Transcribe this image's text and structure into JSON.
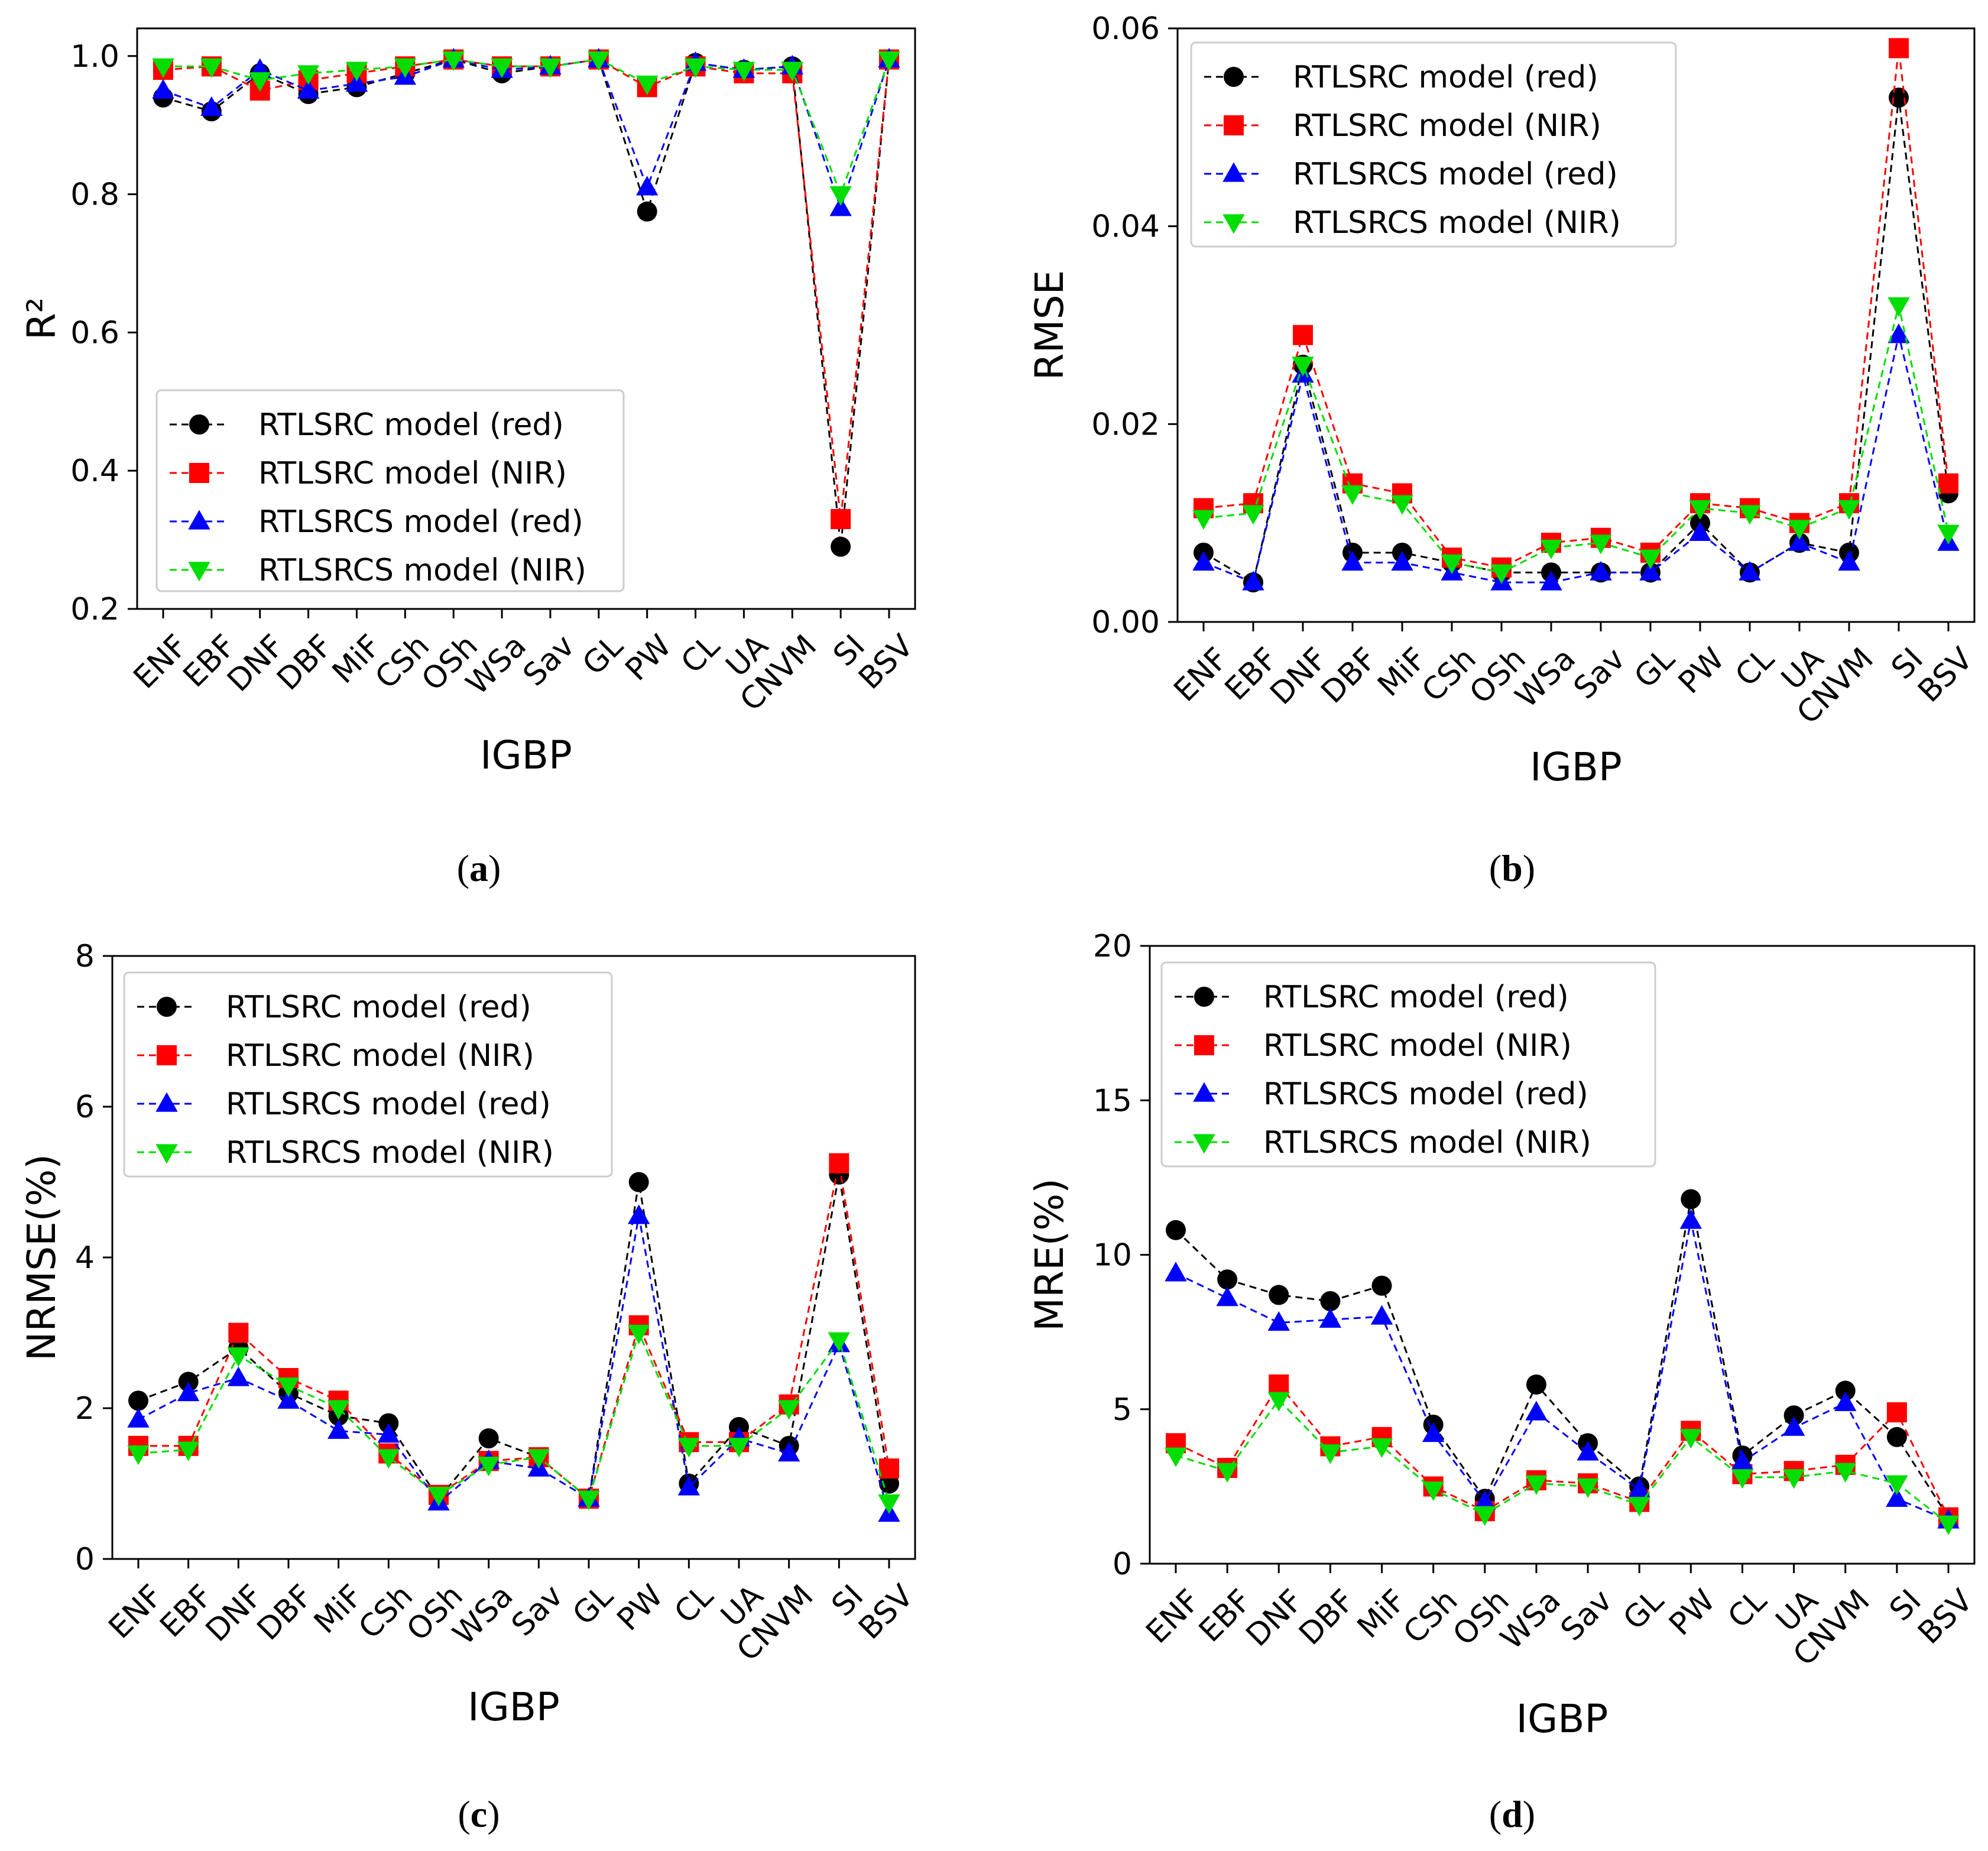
{
  "figure": {
    "panel_labels": [
      "a",
      "b",
      "c",
      "d"
    ]
  },
  "colors": {
    "red_series": "#000000",
    "nir_series": "#ff0000",
    "cs_red_series": "#0000ff",
    "cs_nir_series": "#00dd00"
  },
  "chart_data": [
    {
      "type": "line",
      "panel": "a",
      "xlabel": "IGBP",
      "ylabel": "R²",
      "ylim": [
        0.2,
        1.04
      ],
      "yticks": [
        0.2,
        0.4,
        0.6,
        0.8,
        1.0
      ],
      "ytick_labels": [
        "0.2",
        "0.4",
        "0.6",
        "0.8",
        "1.0"
      ],
      "legend_position": "lower-left",
      "categories": [
        "ENF",
        "EBF",
        "DNF",
        "DBF",
        "MiF",
        "CSh",
        "OSh",
        "WSa",
        "Sav",
        "GL",
        "PW",
        "CL",
        "UA",
        "CNVM",
        "SI",
        "BSV"
      ],
      "series": [
        {
          "name": "RTLSRC model (red)",
          "marker": "circle",
          "color": "#000000",
          "values": [
            0.94,
            0.92,
            0.975,
            0.945,
            0.955,
            0.975,
            0.995,
            0.975,
            0.985,
            0.995,
            0.775,
            0.99,
            0.98,
            0.985,
            0.29,
            0.995
          ]
        },
        {
          "name": "RTLSRC model (NIR)",
          "marker": "square",
          "color": "#ff0000",
          "values": [
            0.98,
            0.985,
            0.95,
            0.965,
            0.975,
            0.985,
            0.995,
            0.985,
            0.985,
            0.995,
            0.955,
            0.985,
            0.975,
            0.975,
            0.33,
            0.995
          ]
        },
        {
          "name": "RTLSRCS model (red)",
          "marker": "triangle-up",
          "color": "#0000ff",
          "values": [
            0.95,
            0.925,
            0.98,
            0.95,
            0.96,
            0.97,
            0.995,
            0.98,
            0.985,
            0.995,
            0.81,
            0.99,
            0.98,
            0.985,
            0.78,
            0.995
          ]
        },
        {
          "name": "RTLSRCS model (NIR)",
          "marker": "triangle-down",
          "color": "#00dd00",
          "values": [
            0.985,
            0.985,
            0.965,
            0.975,
            0.98,
            0.985,
            0.995,
            0.985,
            0.985,
            0.995,
            0.96,
            0.985,
            0.98,
            0.98,
            0.8,
            0.995
          ]
        }
      ]
    },
    {
      "type": "line",
      "panel": "b",
      "xlabel": "IGBP",
      "ylabel": "RMSE",
      "ylim": [
        0.0,
        0.06
      ],
      "yticks": [
        0.0,
        0.02,
        0.04,
        0.06
      ],
      "ytick_labels": [
        "0.00",
        "0.02",
        "0.04",
        "0.06"
      ],
      "legend_position": "top-left",
      "categories": [
        "ENF",
        "EBF",
        "DNF",
        "DBF",
        "MiF",
        "CSh",
        "OSh",
        "WSa",
        "Sav",
        "GL",
        "PW",
        "CL",
        "UA",
        "CNVM",
        "SI",
        "BSV"
      ],
      "series": [
        {
          "name": "RTLSRC model (red)",
          "marker": "circle",
          "color": "#000000",
          "values": [
            0.007,
            0.004,
            0.026,
            0.007,
            0.007,
            0.006,
            0.005,
            0.005,
            0.005,
            0.005,
            0.01,
            0.005,
            0.008,
            0.007,
            0.053,
            0.013
          ]
        },
        {
          "name": "RTLSRC model (NIR)",
          "marker": "square",
          "color": "#ff0000",
          "values": [
            0.0115,
            0.012,
            0.029,
            0.014,
            0.013,
            0.0065,
            0.0055,
            0.008,
            0.0085,
            0.007,
            0.012,
            0.0115,
            0.01,
            0.012,
            0.058,
            0.014
          ]
        },
        {
          "name": "RTLSRCS model (red)",
          "marker": "triangle-up",
          "color": "#0000ff",
          "values": [
            0.006,
            0.004,
            0.025,
            0.006,
            0.006,
            0.005,
            0.004,
            0.004,
            0.005,
            0.005,
            0.009,
            0.005,
            0.008,
            0.006,
            0.029,
            0.008
          ]
        },
        {
          "name": "RTLSRCS model (NIR)",
          "marker": "triangle-down",
          "color": "#00dd00",
          "values": [
            0.0105,
            0.011,
            0.026,
            0.013,
            0.012,
            0.006,
            0.005,
            0.0075,
            0.008,
            0.0065,
            0.0115,
            0.011,
            0.0095,
            0.0115,
            0.032,
            0.009
          ]
        }
      ]
    },
    {
      "type": "line",
      "panel": "c",
      "xlabel": "IGBP",
      "ylabel": "NRMSE(%)",
      "ylim": [
        0,
        8
      ],
      "yticks": [
        0,
        2,
        4,
        6,
        8
      ],
      "ytick_labels": [
        "0",
        "2",
        "4",
        "6",
        "8"
      ],
      "legend_position": "top-left",
      "categories": [
        "ENF",
        "EBF",
        "DNF",
        "DBF",
        "MiF",
        "CSh",
        "OSh",
        "WSa",
        "Sav",
        "GL",
        "PW",
        "CL",
        "UA",
        "CNVM",
        "SI",
        "BSV"
      ],
      "series": [
        {
          "name": "RTLSRC model (red)",
          "marker": "circle",
          "color": "#000000",
          "values": [
            2.1,
            2.35,
            2.8,
            2.2,
            1.9,
            1.8,
            0.8,
            1.6,
            1.35,
            0.8,
            5.0,
            1.0,
            1.75,
            1.5,
            5.1,
            1.0
          ]
        },
        {
          "name": "RTLSRC model (NIR)",
          "marker": "square",
          "color": "#ff0000",
          "values": [
            1.5,
            1.5,
            3.0,
            2.4,
            2.1,
            1.4,
            0.85,
            1.3,
            1.35,
            0.8,
            3.1,
            1.55,
            1.55,
            2.05,
            5.25,
            1.2
          ]
        },
        {
          "name": "RTLSRCS model (red)",
          "marker": "triangle-up",
          "color": "#0000ff",
          "values": [
            1.85,
            2.2,
            2.4,
            2.1,
            1.7,
            1.65,
            0.75,
            1.3,
            1.2,
            0.8,
            4.55,
            0.95,
            1.6,
            1.4,
            2.85,
            0.6
          ]
        },
        {
          "name": "RTLSRCS model (NIR)",
          "marker": "triangle-down",
          "color": "#00dd00",
          "values": [
            1.4,
            1.45,
            2.7,
            2.3,
            2.0,
            1.35,
            0.85,
            1.25,
            1.35,
            0.8,
            3.0,
            1.5,
            1.5,
            2.0,
            2.9,
            0.75
          ]
        }
      ]
    },
    {
      "type": "line",
      "panel": "d",
      "xlabel": "IGBP",
      "ylabel": "MRE(%)",
      "ylim": [
        0,
        20
      ],
      "yticks": [
        0,
        5,
        10,
        15,
        20
      ],
      "ytick_labels": [
        "0",
        "5",
        "10",
        "15",
        "20"
      ],
      "legend_position": "top-left",
      "categories": [
        "ENF",
        "EBF",
        "DNF",
        "DBF",
        "MiF",
        "CSh",
        "OSh",
        "WSa",
        "Sav",
        "GL",
        "PW",
        "CL",
        "UA",
        "CNVM",
        "SI",
        "BSV"
      ],
      "series": [
        {
          "name": "RTLSRC model (red)",
          "marker": "circle",
          "color": "#000000",
          "values": [
            10.8,
            9.2,
            8.7,
            8.5,
            9.0,
            4.5,
            2.1,
            5.8,
            3.9,
            2.5,
            11.8,
            3.5,
            4.8,
            5.6,
            4.1,
            1.5
          ]
        },
        {
          "name": "RTLSRC model (NIR)",
          "marker": "square",
          "color": "#ff0000",
          "values": [
            3.9,
            3.1,
            5.8,
            3.8,
            4.1,
            2.5,
            1.7,
            2.7,
            2.6,
            2.0,
            4.3,
            2.9,
            3.0,
            3.2,
            4.9,
            1.5
          ]
        },
        {
          "name": "RTLSRCS model (red)",
          "marker": "triangle-up",
          "color": "#0000ff",
          "values": [
            9.4,
            8.6,
            7.8,
            7.9,
            8.0,
            4.2,
            2.0,
            4.9,
            3.6,
            2.4,
            11.1,
            3.3,
            4.4,
            5.2,
            2.1,
            1.4
          ]
        },
        {
          "name": "RTLSRCS model (NIR)",
          "marker": "triangle-down",
          "color": "#00dd00",
          "values": [
            3.5,
            3.0,
            5.3,
            3.6,
            3.8,
            2.4,
            1.6,
            2.6,
            2.5,
            1.9,
            4.1,
            2.8,
            2.8,
            3.0,
            2.6,
            1.3
          ]
        }
      ]
    }
  ]
}
